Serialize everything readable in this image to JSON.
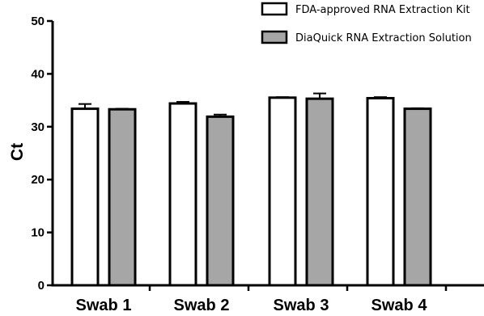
{
  "chart_data": {
    "type": "bar",
    "title": "",
    "xlabel": "",
    "ylabel": "Ct",
    "ylim": [
      0,
      50
    ],
    "yticks": [
      0,
      10,
      20,
      30,
      40,
      50
    ],
    "grid": false,
    "legend_position": "top-right",
    "categories": [
      "Swab 1",
      "Swab 2",
      "Swab 3",
      "Swab 4"
    ],
    "series": [
      {
        "name": "FDA-approved RNA Extraction Kit",
        "color": "#ffffff",
        "values": [
          33.4,
          34.4,
          35.5,
          35.4
        ],
        "errors": [
          0.9,
          0.3,
          0.1,
          0.2
        ]
      },
      {
        "name": "DiaQuick RNA Extraction Solution",
        "color": "#a6a6a6",
        "values": [
          33.3,
          31.9,
          35.3,
          33.4
        ],
        "errors": [
          0.1,
          0.4,
          1.0,
          0.1
        ]
      }
    ]
  }
}
